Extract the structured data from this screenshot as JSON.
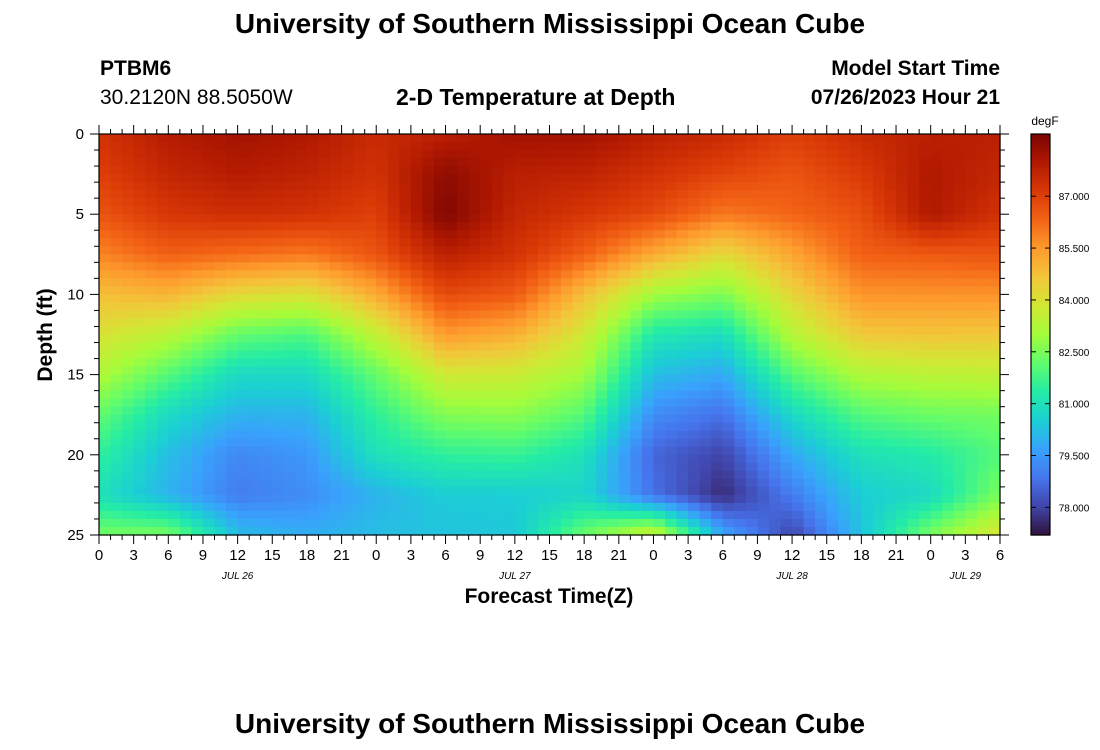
{
  "header": {
    "title": "University of Southern Mississippi Ocean Cube",
    "station": "PTBM6",
    "location": "30.2120N  88.5050W",
    "subtitle": "2-D Temperature at Depth",
    "model_start_label": "Model Start Time",
    "model_start_value": "07/26/2023 Hour 21"
  },
  "footer": {
    "title": "University of Southern Mississippi Ocean Cube"
  },
  "chart_data": {
    "type": "heatmap",
    "title": "2-D Temperature at Depth",
    "xlabel": "Forecast Time(Z)",
    "ylabel": "Depth (ft)",
    "x_ticks": [
      "0",
      "3",
      "6",
      "9",
      "12",
      "15",
      "18",
      "21",
      "0",
      "3",
      "6",
      "9",
      "12",
      "15",
      "18",
      "21",
      "0",
      "3",
      "6",
      "9",
      "12",
      "15",
      "18",
      "21",
      "0",
      "3",
      "6"
    ],
    "x_range_hours": [
      0,
      78
    ],
    "x_date_labels": [
      {
        "label": "JUL 26",
        "hour": 12
      },
      {
        "label": "JUL 27",
        "hour": 36
      },
      {
        "label": "JUL 28",
        "hour": 60
      },
      {
        "label": "JUL 29",
        "hour": 75
      }
    ],
    "y_ticks": [
      0,
      5,
      10,
      15,
      20,
      25
    ],
    "ylim": [
      0,
      25
    ],
    "y_inverted": true,
    "colorbar": {
      "unit": "degF",
      "ticks": [
        "87.000",
        "85.500",
        "84.000",
        "82.500",
        "81.000",
        "79.500",
        "78.000"
      ],
      "range": [
        77.2,
        88.8
      ],
      "colors": [
        "#30123b",
        "#4145ab",
        "#4675ed",
        "#39a2fc",
        "#1bcfd4",
        "#24eca6",
        "#61fc6c",
        "#a4fc3b",
        "#d1e834",
        "#f3c63a",
        "#fe9b2d",
        "#f36315",
        "#d93806",
        "#b11901",
        "#7a0402"
      ]
    },
    "temperature_grid": {
      "depths_ft": [
        0,
        2.5,
        5,
        7.5,
        10,
        12.5,
        15,
        17.5,
        20,
        22.5,
        25
      ],
      "hours": [
        0,
        6,
        12,
        18,
        24,
        30,
        36,
        42,
        48,
        54,
        60,
        66,
        72,
        78
      ],
      "values_degF": [
        [
          87.3,
          87.9,
          88.2,
          88.0,
          87.5,
          87.8,
          88.2,
          88.2,
          87.8,
          87.5,
          87.0,
          87.5,
          87.8,
          87.8
        ],
        [
          87.0,
          87.6,
          87.9,
          87.7,
          87.3,
          88.5,
          87.8,
          87.7,
          87.3,
          86.9,
          86.6,
          87.1,
          88.0,
          87.6
        ],
        [
          86.6,
          87.2,
          87.4,
          87.3,
          87.0,
          88.7,
          87.6,
          87.2,
          86.8,
          86.0,
          86.3,
          86.7,
          88.0,
          87.3
        ],
        [
          85.8,
          86.4,
          86.2,
          86.0,
          86.6,
          87.8,
          87.3,
          86.4,
          85.2,
          84.2,
          85.3,
          86.4,
          86.5,
          86.6
        ],
        [
          84.8,
          85.0,
          84.2,
          84.0,
          85.2,
          86.8,
          86.5,
          84.8,
          83.0,
          82.5,
          84.3,
          85.6,
          85.6,
          85.6
        ],
        [
          84.0,
          83.4,
          82.2,
          81.9,
          83.5,
          85.5,
          85.1,
          83.8,
          81.2,
          80.9,
          83.3,
          84.6,
          84.7,
          84.6
        ],
        [
          83.2,
          82.0,
          80.8,
          80.8,
          82.2,
          83.8,
          83.7,
          83.0,
          80.2,
          79.8,
          82.0,
          83.2,
          83.4,
          83.5
        ],
        [
          82.2,
          80.8,
          80.0,
          80.0,
          81.5,
          82.6,
          82.7,
          82.0,
          79.3,
          78.8,
          80.8,
          82.0,
          82.3,
          82.4
        ],
        [
          81.5,
          80.2,
          79.2,
          79.5,
          81.0,
          81.5,
          81.6,
          81.0,
          78.6,
          78.0,
          79.8,
          81.0,
          81.3,
          82.0
        ],
        [
          81.0,
          80.0,
          79.0,
          79.3,
          80.0,
          80.5,
          80.5,
          80.7,
          78.8,
          77.6,
          79.0,
          80.5,
          80.8,
          82.5
        ],
        [
          82.4,
          82.5,
          80.2,
          79.9,
          80.2,
          80.3,
          80.4,
          82.3,
          83.8,
          79.8,
          78.0,
          80.3,
          82.5,
          84.0
        ]
      ]
    }
  }
}
